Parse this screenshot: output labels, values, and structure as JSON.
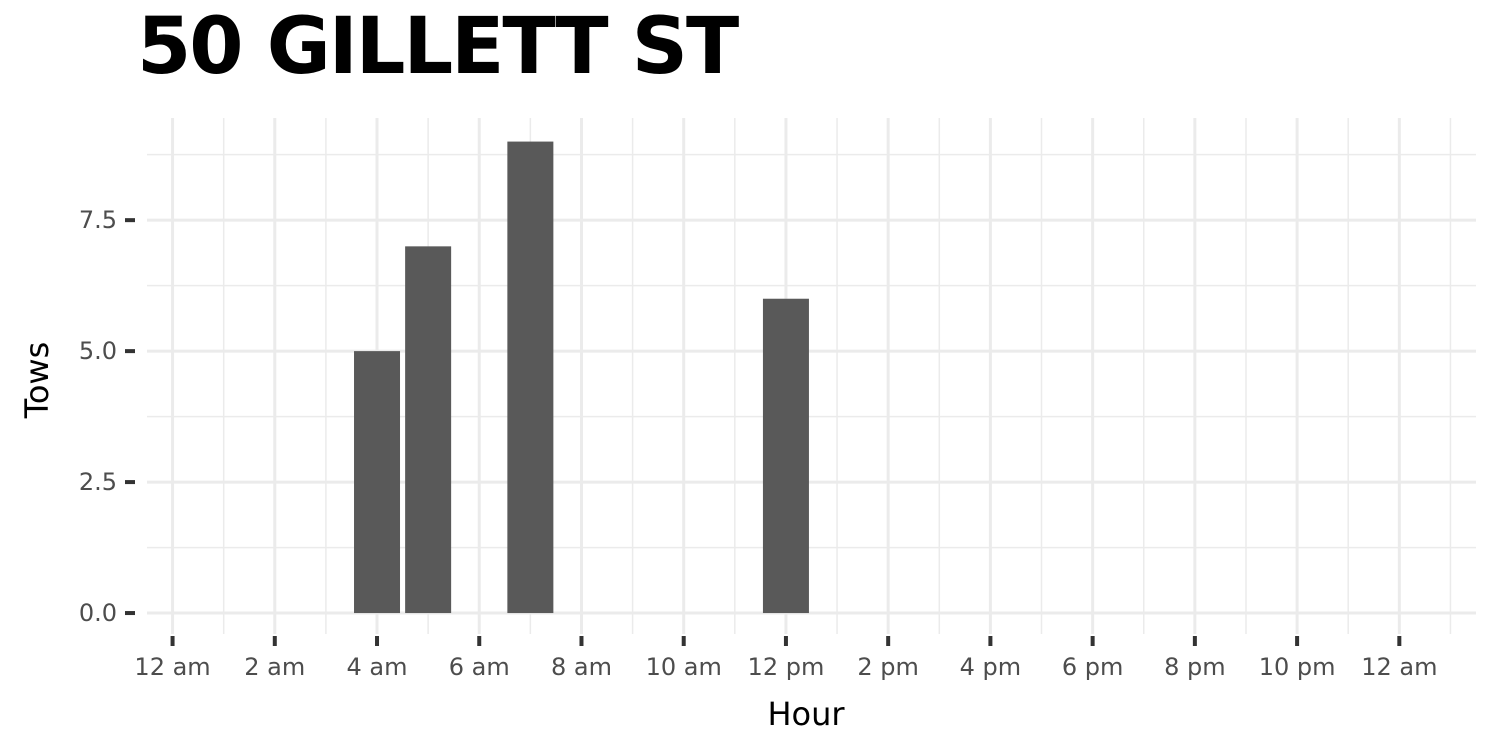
{
  "title": "50 GILLETT ST",
  "chart_data": {
    "type": "bar",
    "title": "50 GILLETT ST",
    "xlabel": "Hour",
    "ylabel": "Tows",
    "x": [
      4,
      5,
      7,
      12
    ],
    "values": [
      5,
      7,
      9,
      6
    ],
    "xlim": [
      -0.5,
      25.5
    ],
    "ylim": [
      -0.4,
      9.45
    ],
    "x_ticks": [
      0,
      2,
      4,
      6,
      8,
      10,
      12,
      14,
      16,
      18,
      20,
      22,
      24
    ],
    "x_tick_labels": [
      "12 am",
      "2 am",
      "4 am",
      "6 am",
      "8 am",
      "10 am",
      "12 pm",
      "2 pm",
      "4 pm",
      "6 pm",
      "8 pm",
      "10 pm",
      "12 am"
    ],
    "y_ticks": [
      0,
      2.5,
      5,
      7.5
    ],
    "y_tick_labels": [
      "0.0",
      "2.5",
      "5.0",
      "7.5"
    ],
    "bar_width": 0.9,
    "colors": {
      "bar": "#595959",
      "grid": "#ebebeb",
      "background": "#ffffff"
    },
    "grid": true
  }
}
